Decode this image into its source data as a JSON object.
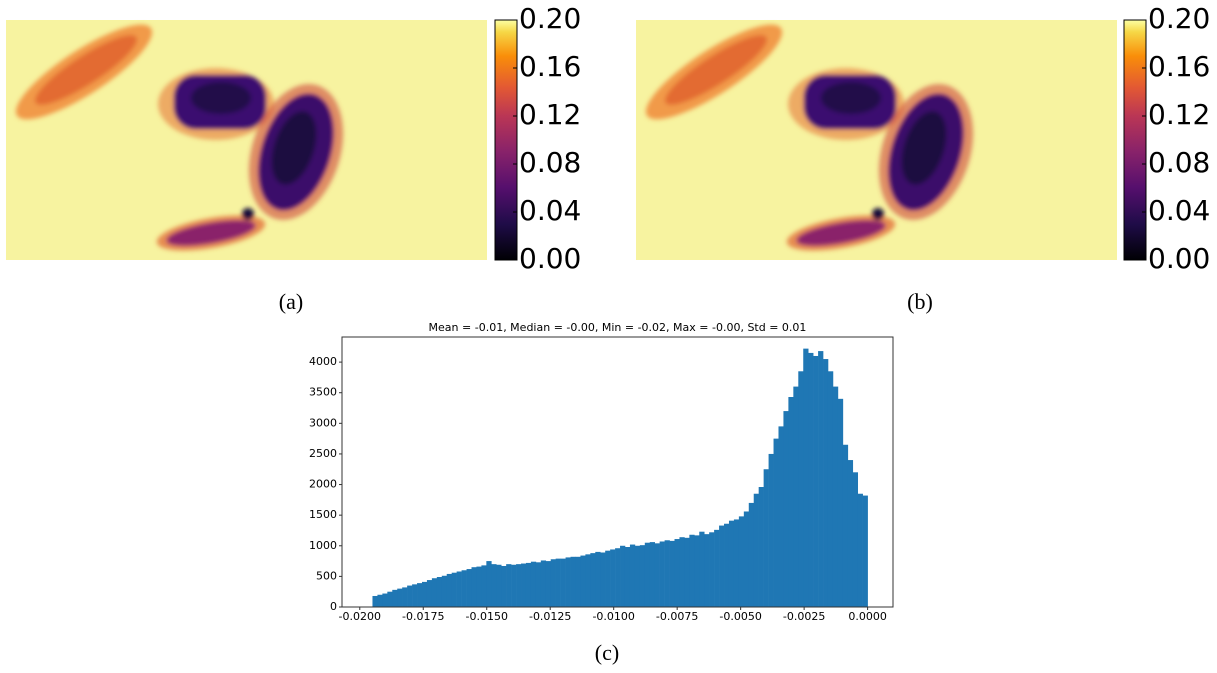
{
  "chart_data": [
    {
      "type": "image",
      "caption": "(a)",
      "clim": [
        0,
        0.2
      ],
      "cticks": [
        {
          "value": 0,
          "label": "0.00"
        },
        0.04,
        0.08,
        0.12,
        0.16,
        {
          "value": 0.2,
          "label": "0.20"
        }
      ]
    },
    {
      "type": "image",
      "caption": "(b)",
      "clim": [
        0,
        0.2
      ],
      "cticks": [
        {
          "value": 0,
          "label": "0.00"
        },
        0.04,
        0.08,
        0.12,
        0.16,
        {
          "value": 0.2,
          "label": "0.20"
        }
      ]
    },
    {
      "type": "histogram",
      "caption": "(c)",
      "title": "Mean = -0.01, Median = -0.00, Min = -0.02, Max = -0.00, Std = 0.01",
      "color": "#1f77b4",
      "bins": [
        -0.0195,
        -0.019305,
        -0.01911,
        -0.018915,
        -0.01872,
        -0.018525,
        -0.01833,
        -0.018135,
        -0.01794,
        -0.017745,
        -0.01755,
        -0.017355,
        -0.01716,
        -0.016965,
        -0.01677,
        -0.016575,
        -0.01638,
        -0.016185,
        -0.01599,
        -0.015795,
        -0.0156,
        -0.015405,
        -0.01521,
        -0.015015,
        -0.01482,
        -0.014625,
        -0.01443,
        -0.014235,
        -0.01404,
        -0.013845,
        -0.01365,
        -0.013455,
        -0.01326,
        -0.013065,
        -0.01287,
        -0.012675,
        -0.01248,
        -0.012285,
        -0.01209,
        -0.011895,
        -0.0117,
        -0.011505,
        -0.01131,
        -0.011115,
        -0.01092,
        -0.010725,
        -0.01053,
        -0.010335,
        -0.01014,
        -0.009945,
        -0.00975,
        -0.009555,
        -0.00936,
        -0.009165,
        -0.00897,
        -0.008775,
        -0.00858,
        -0.008385,
        -0.00819,
        -0.007995,
        -0.0078,
        -0.007605,
        -0.00741,
        -0.007215,
        -0.00702,
        -0.006825,
        -0.00663,
        -0.006435,
        -0.00624,
        -0.006045,
        -0.00585,
        -0.005655,
        -0.00546,
        -0.005265,
        -0.00507,
        -0.004875,
        -0.00468,
        -0.004485,
        -0.00429,
        -0.004095,
        -0.0039,
        -0.003705,
        -0.00351,
        -0.003315,
        -0.00312,
        -0.002925,
        -0.00273,
        -0.002535,
        -0.00234,
        -0.002145,
        -0.00195,
        -0.001755,
        -0.00156,
        -0.001365,
        -0.00117,
        -0.000975,
        -0.00078,
        -0.000585,
        -0.00039,
        -0.000195,
        0
      ],
      "counts": [
        180,
        200,
        220,
        250,
        280,
        300,
        320,
        350,
        370,
        390,
        410,
        440,
        470,
        490,
        510,
        540,
        560,
        580,
        600,
        620,
        650,
        660,
        680,
        750,
        700,
        690,
        670,
        700,
        690,
        700,
        710,
        720,
        740,
        730,
        760,
        750,
        780,
        790,
        790,
        810,
        820,
        820,
        840,
        860,
        880,
        900,
        890,
        920,
        940,
        960,
        1000,
        980,
        1020,
        1000,
        1010,
        1050,
        1060,
        1040,
        1070,
        1090,
        1080,
        1110,
        1140,
        1130,
        1180,
        1170,
        1230,
        1190,
        1220,
        1260,
        1330,
        1360,
        1410,
        1430,
        1480,
        1560,
        1700,
        1850,
        1960,
        2250,
        2500,
        2750,
        2950,
        3200,
        3430,
        3600,
        3850,
        4220,
        4150,
        4100,
        4180,
        4050,
        3850,
        3600,
        3400,
        2650,
        2400,
        2200,
        1850,
        1820
      ],
      "xlim": [
        -0.0207,
        0.001
      ],
      "ylim": [
        0,
        4410
      ],
      "xticks": [
        {
          "value": -0.02,
          "label": "-0.0200"
        },
        {
          "value": -0.0175,
          "label": "-0.0175"
        },
        {
          "value": -0.015,
          "label": "-0.0150"
        },
        {
          "value": -0.0125,
          "label": "-0.0125"
        },
        {
          "value": -0.01,
          "label": "-0.0100"
        },
        {
          "value": -0.0075,
          "label": "-0.0075"
        },
        {
          "value": -0.005,
          "label": "-0.0050"
        },
        {
          "value": -0.0025,
          "label": "-0.0025"
        },
        {
          "value": 0,
          "label": "0.0000"
        }
      ],
      "yticks": [
        0,
        500,
        1000,
        1500,
        2000,
        2500,
        3000,
        3500,
        4000
      ]
    }
  ]
}
